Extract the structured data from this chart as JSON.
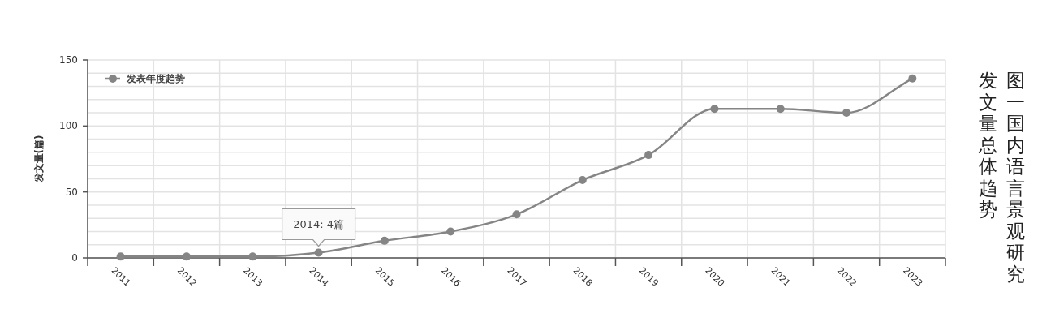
{
  "chart_data": {
    "type": "line",
    "title": "图一国内语言景观研究发文量总体趋势",
    "ylabel": "发文量(篇)",
    "categories": [
      "2011",
      "2012",
      "2013",
      "2014",
      "2015",
      "2016",
      "2017",
      "2018",
      "2019",
      "2020",
      "2021",
      "2022",
      "2023"
    ],
    "series": [
      {
        "name": "发表年度趋势",
        "color": "#858585",
        "values": [
          1,
          1,
          1,
          4,
          13,
          20,
          33,
          59,
          78,
          113,
          113,
          110,
          136
        ]
      }
    ],
    "ylim": [
      0,
      150
    ],
    "yticks": [
      0,
      {
        "value": 10,
        "label": null
      },
      {
        "value": 20,
        "label": null
      },
      {
        "value": 30,
        "label": null
      },
      {
        "value": 40,
        "label": null
      },
      50,
      {
        "value": 60,
        "label": null
      },
      {
        "value": 70,
        "label": null
      },
      {
        "value": 80,
        "label": null
      },
      {
        "value": 90,
        "label": null
      },
      100,
      {
        "value": 110,
        "label": null
      },
      {
        "value": 120,
        "label": null
      },
      {
        "value": 130,
        "label": null
      },
      {
        "value": 140,
        "label": null
      },
      150
    ],
    "grid": true,
    "legend": "top left",
    "marker": "circle",
    "line_style": "solid",
    "annotations": [
      {
        "text": "2014: 4篇",
        "x": "2014",
        "y": 4
      }
    ]
  }
}
